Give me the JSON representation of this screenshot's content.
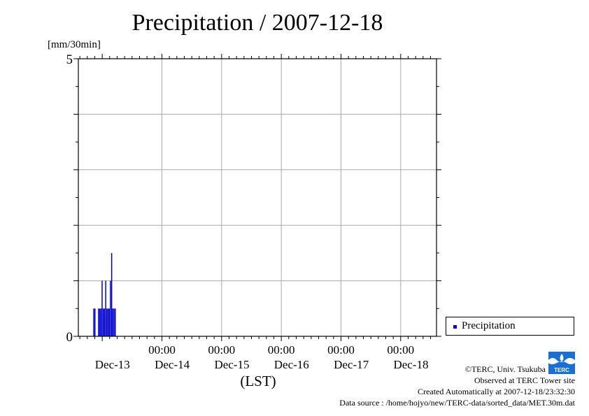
{
  "title": "Precipitation / 2007-12-18",
  "unit_label": "[mm/30min]",
  "legend": {
    "label": "Precipitation",
    "color": "#0000cc"
  },
  "credits": {
    "copyright": "©TERC, Univ. Tsukuba",
    "observed": "Observed at TERC Tower site",
    "created": "Created Automatically at 2007-12-18/23:32:30",
    "source": "Data source : /home/hojyo/new/TERC-data/sorted_data/MET.30m.dat"
  },
  "logo": {
    "text": "TERC",
    "color": "#1a6fd0"
  },
  "chart_data": {
    "type": "bar",
    "title": "Precipitation / 2007-12-18",
    "ylabel": "[mm/30min]",
    "xlabel": "(LST)",
    "ylim": [
      0,
      5
    ],
    "yticks": [
      0,
      5
    ],
    "x_range_days": [
      -0.4,
      5.6
    ],
    "x_tick_time_label": "00:00",
    "x_day_labels": [
      "Dec-13",
      "Dec-14",
      "Dec-15",
      "Dec-16",
      "Dec-17",
      "Dec-18"
    ],
    "grid": true,
    "legend_position": "right",
    "series": [
      {
        "name": "Precipitation",
        "color": "#0000cc",
        "x": [
          -0.14,
          -0.12,
          -0.06,
          -0.04,
          -0.02,
          0.0,
          0.02,
          0.04,
          0.06,
          0.08,
          0.1,
          0.12,
          0.14,
          0.16,
          0.18,
          0.2,
          0.22
        ],
        "values": [
          0.5,
          0.5,
          0.5,
          0.5,
          0.5,
          1.0,
          0.5,
          0.5,
          1.0,
          0.5,
          0.5,
          0.5,
          1.0,
          1.5,
          0.5,
          0.5,
          0.5
        ]
      }
    ]
  }
}
